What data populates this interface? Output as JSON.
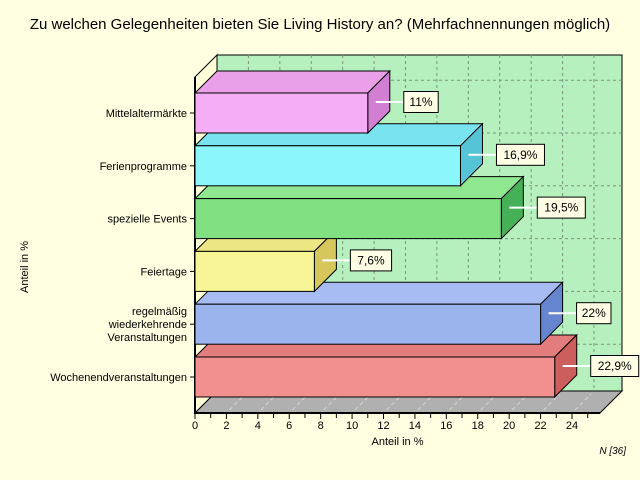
{
  "title": "Zu welchen Gelegenheiten bieten Sie Living History an? (Mehrfachnennungen möglich)",
  "footnote": "N [36]",
  "colors": {
    "page_background": "#FFFFE1",
    "plot_wall": "#B5F0BE",
    "side_wall": "#FFFFD8",
    "floor": "#B0B0B0",
    "floor_dash": "#D6D6D6",
    "grid": "#7B957B",
    "axis": "#000000",
    "callout_background": "#FFFFE6",
    "callout_border": "#000000",
    "leader_line": "#FFFFFF"
  },
  "chart_data": {
    "type": "bar",
    "orientation": "horizontal",
    "style": "3d",
    "title": "Zu welchen Gelegenheiten bieten Sie Living History an? (Mehrfachnennungen möglich)",
    "xlabel": "Anteil in %",
    "ylabel": "Anteil in %",
    "grid": true,
    "xlim": [
      0,
      25.8
    ],
    "xticks": [
      0,
      2,
      4,
      6,
      8,
      10,
      12,
      14,
      16,
      18,
      20,
      22,
      24
    ],
    "categories": [
      "Mittelaltermärkte",
      "Ferienprogramme",
      "spezielle Events",
      "Feiertage",
      "regelmäßig wiederkehrende Veranstaltungen",
      "Wochenendveranstaltungen"
    ],
    "values": [
      11,
      16.9,
      19.5,
      7.6,
      22,
      22.9
    ],
    "value_labels": [
      "11%",
      "16,9%",
      "19,5%",
      "7,6%",
      "22%",
      "22,9%"
    ],
    "bar_colors": [
      {
        "front": "#F5ADF5",
        "top": "#E9A0E9",
        "side": "#D27ED2"
      },
      {
        "front": "#8BF7FD",
        "top": "#79E4EF",
        "side": "#55C4D6"
      },
      {
        "front": "#81E081",
        "top": "#8FE78F",
        "side": "#46B056"
      },
      {
        "front": "#F8F596",
        "top": "#EDE684",
        "side": "#D6C75C"
      },
      {
        "front": "#9CB4EE",
        "top": "#A6BCF3",
        "side": "#6585CF"
      },
      {
        "front": "#F29090",
        "top": "#E37C7C",
        "side": "#CC5E5E"
      }
    ]
  }
}
